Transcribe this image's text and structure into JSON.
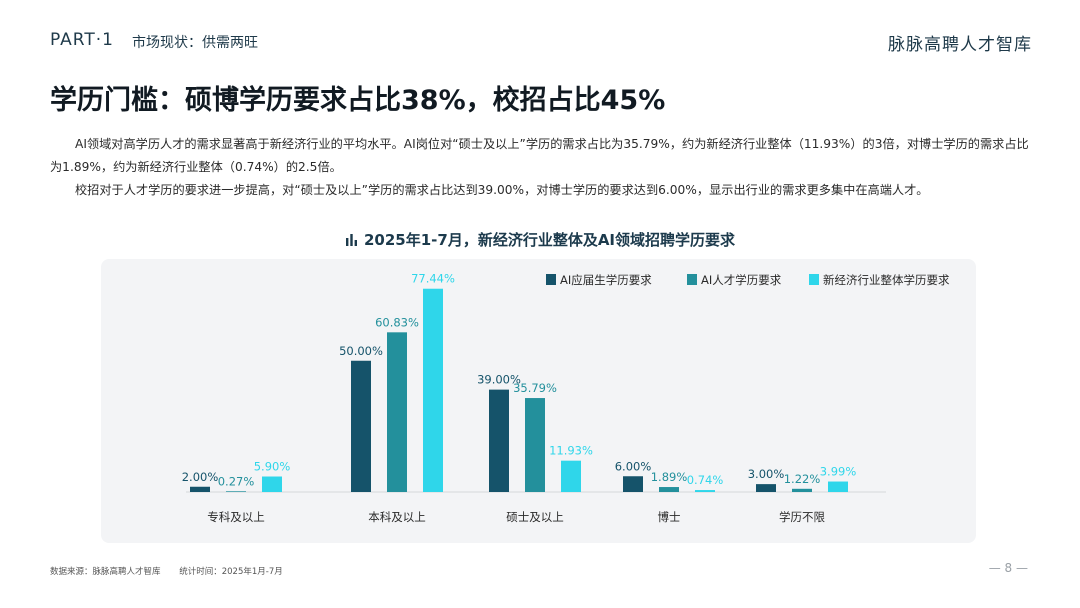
{
  "header": {
    "part": "PART·1",
    "section": "市场现状：供需两旺",
    "brand": "脉脉高聘人才智库"
  },
  "title": "学历门槛：硕博学历要求占比38%，校招占比45%",
  "paragraphs": [
    "AI领域对高学历人才的需求显著高于新经济行业的平均水平。AI岗位对“硕士及以上”学历的需求占比为35.79%，约为新经济行业整体（11.93%）的3倍，对博士学历的需求占比为1.89%，约为新经济行业整体（0.74%）的2.5倍。",
    "校招对于人才学历的要求进一步提高，对“硕士及以上”学历的需求占比达到39.00%，对博士学历的要求达到6.00%，显示出行业的需求更多集中在高端人才。"
  ],
  "chart_data": {
    "type": "bar",
    "title": "2025年1-7月，新经济行业整体及AI领域招聘学历要求",
    "categories": [
      "专科及以上",
      "本科及以上",
      "硕士及以上",
      "博士",
      "学历不限"
    ],
    "series": [
      {
        "name": "AI应届生学历要求",
        "color": "#15536a",
        "values": [
          2.0,
          50.0,
          39.0,
          6.0,
          3.0
        ],
        "labels": [
          "2.00%",
          "50.00%",
          "39.00%",
          "6.00%",
          "3.00%"
        ]
      },
      {
        "name": "AI人才学历要求",
        "color": "#23909c",
        "values": [
          0.27,
          60.83,
          35.79,
          1.89,
          1.22
        ],
        "labels": [
          "0.27%",
          "60.83%",
          "35.79%",
          "1.89%",
          "1.22%"
        ]
      },
      {
        "name": "新经济行业整体学历要求",
        "color": "#2fd6ea",
        "values": [
          5.9,
          77.44,
          11.93,
          0.74,
          3.99
        ],
        "labels": [
          "5.90%",
          "77.44%",
          "11.93%",
          "0.74%",
          "3.99%"
        ]
      }
    ],
    "ylim": [
      0,
      80
    ],
    "legend": "top-right",
    "grid": false
  },
  "footer": {
    "source": "数据来源：脉脉高聘人才智库",
    "period": "统计时间：2025年1月-7月"
  },
  "page_number": "— 8 —"
}
